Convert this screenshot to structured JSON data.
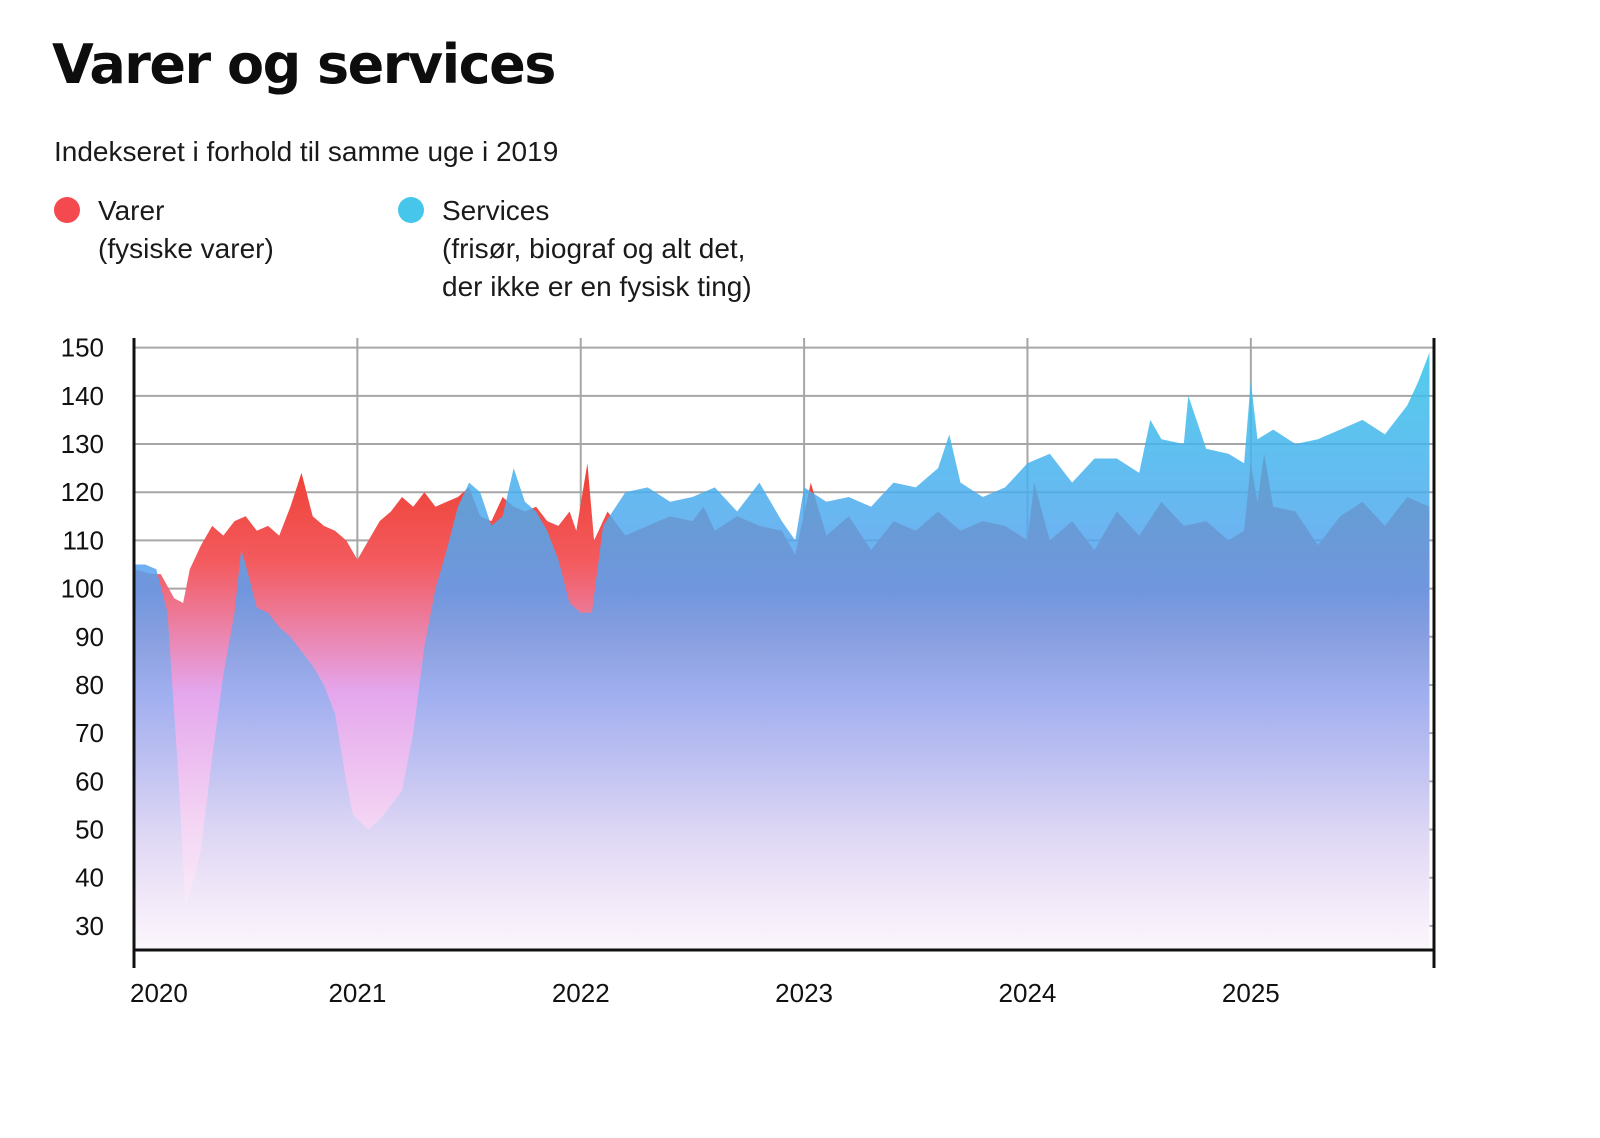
{
  "header": {
    "title": "Varer og services",
    "subtitle": "Indekseret i forhold til samme uge i 2019"
  },
  "legend": {
    "varer": {
      "label": "Varer",
      "description": "(fysiske varer)",
      "color": "#f44a4f"
    },
    "services": {
      "label": "Services",
      "description_line1": "(frisør, biograf og alt det,",
      "description_line2": "der ikke er en fysisk ting)",
      "color": "#45c6ea"
    }
  },
  "chart_data": {
    "type": "area",
    "title": "Varer og services",
    "subtitle": "Indekseret i forhold til samme uge i 2019",
    "xlabel": "",
    "ylabel": "",
    "xlim": [
      2020.0,
      2025.82
    ],
    "ylim": [
      25,
      152
    ],
    "yticks": [
      30,
      40,
      50,
      60,
      70,
      80,
      90,
      100,
      110,
      120,
      130,
      140,
      150
    ],
    "xticks": [
      {
        "value": 2020,
        "label": "2020"
      },
      {
        "value": 2021,
        "label": "2021"
      },
      {
        "value": 2022,
        "label": "2022"
      },
      {
        "value": 2023,
        "label": "2023"
      },
      {
        "value": 2024,
        "label": "2024"
      },
      {
        "value": 2025,
        "label": "2025"
      }
    ],
    "grid": true,
    "legend_position": "top-left",
    "series": [
      {
        "name": "Varer",
        "color": "#f44a4f",
        "x": [
          2020.0,
          2020.08,
          2020.12,
          2020.18,
          2020.22,
          2020.25,
          2020.3,
          2020.35,
          2020.4,
          2020.45,
          2020.5,
          2020.55,
          2020.6,
          2020.65,
          2020.7,
          2020.75,
          2020.8,
          2020.85,
          2020.9,
          2020.95,
          2021.0,
          2021.05,
          2021.1,
          2021.15,
          2021.2,
          2021.25,
          2021.3,
          2021.35,
          2021.4,
          2021.45,
          2021.5,
          2021.55,
          2021.6,
          2021.65,
          2021.7,
          2021.75,
          2021.8,
          2021.85,
          2021.9,
          2021.95,
          2021.98,
          2022.03,
          2022.06,
          2022.12,
          2022.2,
          2022.3,
          2022.4,
          2022.5,
          2022.55,
          2022.6,
          2022.7,
          2022.8,
          2022.9,
          2022.96,
          2023.03,
          2023.1,
          2023.2,
          2023.3,
          2023.4,
          2023.5,
          2023.6,
          2023.7,
          2023.8,
          2023.9,
          2024.0,
          2024.03,
          2024.1,
          2024.2,
          2024.3,
          2024.4,
          2024.5,
          2024.6,
          2024.7,
          2024.8,
          2024.9,
          2024.97,
          2025.0,
          2025.03,
          2025.06,
          2025.1,
          2025.2,
          2025.3,
          2025.4,
          2025.5,
          2025.6,
          2025.7,
          2025.8
        ],
        "values": [
          104,
          103,
          103,
          98,
          97,
          104,
          109,
          113,
          111,
          114,
          115,
          112,
          113,
          111,
          117,
          124,
          115,
          113,
          112,
          110,
          106,
          110,
          114,
          116,
          119,
          117,
          120,
          117,
          118,
          119,
          121,
          115,
          114,
          119,
          117,
          116,
          117,
          114,
          113,
          116,
          112,
          126,
          110,
          116,
          111,
          113,
          115,
          114,
          117,
          112,
          115,
          113,
          112,
          107,
          122,
          111,
          115,
          108,
          114,
          112,
          116,
          112,
          114,
          113,
          110,
          122,
          110,
          114,
          108,
          116,
          111,
          118,
          113,
          114,
          110,
          112,
          126,
          118,
          128,
          117,
          116,
          109,
          115,
          118,
          113,
          119,
          117
        ]
      },
      {
        "name": "Services",
        "color": "#45c6ea",
        "x": [
          2020.0,
          2020.05,
          2020.1,
          2020.15,
          2020.2,
          2020.23,
          2020.27,
          2020.3,
          2020.35,
          2020.4,
          2020.45,
          2020.48,
          2020.5,
          2020.55,
          2020.6,
          2020.65,
          2020.7,
          2020.75,
          2020.8,
          2020.85,
          2020.9,
          2020.95,
          2020.98,
          2021.05,
          2021.1,
          2021.15,
          2021.2,
          2021.25,
          2021.3,
          2021.35,
          2021.4,
          2021.45,
          2021.5,
          2021.55,
          2021.6,
          2021.65,
          2021.7,
          2021.75,
          2021.8,
          2021.85,
          2021.9,
          2021.95,
          2022.0,
          2022.05,
          2022.1,
          2022.2,
          2022.3,
          2022.4,
          2022.5,
          2022.6,
          2022.7,
          2022.8,
          2022.9,
          2022.96,
          2023.0,
          2023.1,
          2023.2,
          2023.3,
          2023.4,
          2023.5,
          2023.6,
          2023.65,
          2023.7,
          2023.8,
          2023.9,
          2024.0,
          2024.1,
          2024.2,
          2024.3,
          2024.4,
          2024.5,
          2024.55,
          2024.6,
          2024.7,
          2024.72,
          2024.8,
          2024.9,
          2024.97,
          2025.0,
          2025.03,
          2025.1,
          2025.2,
          2025.3,
          2025.4,
          2025.5,
          2025.6,
          2025.7,
          2025.75,
          2025.8
        ],
        "values": [
          105,
          105,
          104,
          95,
          60,
          34,
          40,
          46,
          65,
          82,
          95,
          108,
          105,
          96,
          95,
          92,
          90,
          87,
          84,
          80,
          74,
          60,
          53,
          50,
          52,
          55,
          58,
          70,
          88,
          100,
          108,
          117,
          122,
          120,
          113,
          115,
          125,
          118,
          116,
          112,
          106,
          97,
          95,
          95,
          113,
          120,
          121,
          118,
          119,
          121,
          116,
          122,
          114,
          110,
          121,
          118,
          119,
          117,
          122,
          121,
          125,
          132,
          122,
          119,
          121,
          126,
          128,
          122,
          127,
          127,
          124,
          135,
          131,
          130,
          140,
          129,
          128,
          126,
          143,
          131,
          133,
          130,
          131,
          133,
          135,
          132,
          138,
          143,
          149
        ]
      }
    ]
  }
}
